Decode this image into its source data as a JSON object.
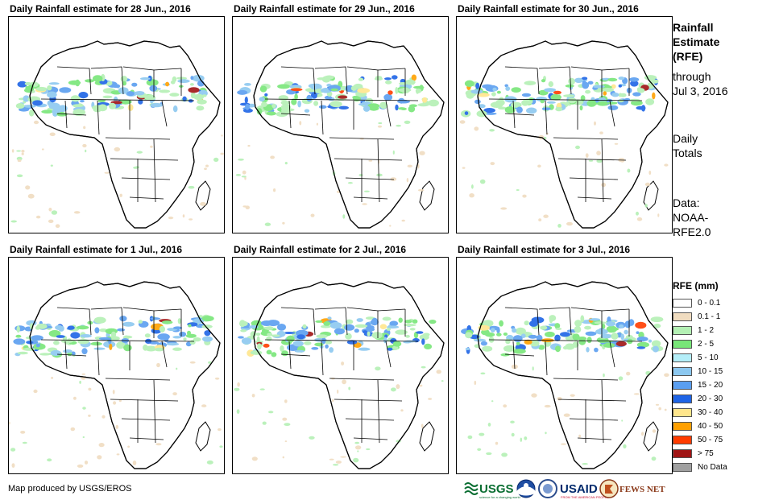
{
  "panels": [
    {
      "title": "Daily Rainfall estimate for 28 Jun., 2016"
    },
    {
      "title": "Daily Rainfall estimate for 29 Jun., 2016"
    },
    {
      "title": "Daily Rainfall estimate for 30 Jun., 2016"
    },
    {
      "title": "Daily Rainfall estimate for 1 Jul., 2016"
    },
    {
      "title": "Daily Rainfall estimate for 2 Jul., 2016"
    },
    {
      "title": "Daily Rainfall estimate for 3 Jul., 2016"
    }
  ],
  "side": {
    "title_line1": "Rainfall",
    "title_line2": "Estimate",
    "title_line3": "(RFE)",
    "through_line1": "through",
    "through_line2": "Jul 3, 2016",
    "totals_line1": "Daily",
    "totals_line2": "Totals",
    "data_line1": "Data:",
    "data_line2": "NOAA-",
    "data_line3": "RFE2.0"
  },
  "legend": {
    "title": "RFE (mm)",
    "items": [
      {
        "label": "0 - 0.1",
        "color": "#ffffff"
      },
      {
        "label": "0.1 - 1",
        "color": "#f0dcc0"
      },
      {
        "label": "1 - 2",
        "color": "#b4f0b4"
      },
      {
        "label": "2 - 5",
        "color": "#78e678"
      },
      {
        "label": "5 - 10",
        "color": "#b4eef8"
      },
      {
        "label": "10 - 15",
        "color": "#8cc8f0"
      },
      {
        "label": "15 - 20",
        "color": "#5a9ef0"
      },
      {
        "label": "20 - 30",
        "color": "#1e64e6"
      },
      {
        "label": "30 - 40",
        "color": "#ffe68c"
      },
      {
        "label": "40 - 50",
        "color": "#ffa000"
      },
      {
        "label": "50 - 75",
        "color": "#ff3c00"
      },
      {
        "label": "> 75",
        "color": "#a01414"
      },
      {
        "label": "No Data",
        "color": "#a0a0a0"
      }
    ]
  },
  "footer": {
    "credit": "Map produced by USGS/EROS",
    "logo_usgs": "USGS",
    "logo_usgs_tagline": "science for a changing world",
    "logo_usaid": "USAID",
    "logo_usaid_tagline": "FROM THE AMERICAN PEOPLE",
    "logo_fewsnet": "FEWS NET"
  }
}
